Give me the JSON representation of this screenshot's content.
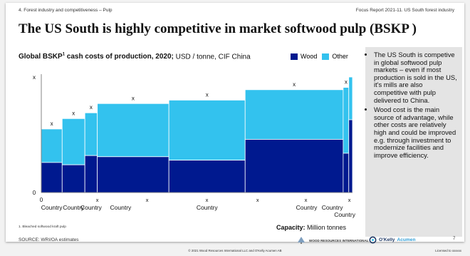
{
  "header": {
    "left": "4. Forest industry and competitiveness – Pulp",
    "right": "Focus Report 2021-11. US South forest industry"
  },
  "title": "The US South is highly competitive in market softwood pulp (BSKP )",
  "chart_data": {
    "type": "bar",
    "title_bold": "Global BSKP",
    "title_sup": "1",
    "title_bold_tail": " cash costs of production, 2020;",
    "title_rest": " USD / tonne, CIF China",
    "legend": [
      {
        "name": "Wood",
        "color": "#00198f"
      },
      {
        "name": "Other",
        "color": "#33c2ee"
      }
    ],
    "ylabel": "x",
    "y_zero_label": "0",
    "x_zero_label": "0",
    "xlabel_bold": "Capacity:",
    "xlabel_rest": " Million tonnes",
    "ylim": [
      0,
      100
    ],
    "x_range": [
      0,
      100
    ],
    "bar_value_label": "x",
    "bars": [
      {
        "x0": 0.0,
        "x1": 6.7,
        "wood": 26,
        "other": 29,
        "label": "Country"
      },
      {
        "x0": 6.7,
        "x1": 14.0,
        "wood": 24,
        "other": 40,
        "label": "Country"
      },
      {
        "x0": 14.0,
        "x1": 18.0,
        "wood": 32,
        "other": 37,
        "label": "Country"
      },
      {
        "x0": 18.0,
        "x1": 41.0,
        "wood": 31,
        "other": 46,
        "label": "Country"
      },
      {
        "x0": 41.0,
        "x1": 65.5,
        "wood": 28,
        "other": 52,
        "label": "Country"
      },
      {
        "x0": 65.5,
        "x1": 97.0,
        "wood": 46,
        "other": 43,
        "label": "Country"
      },
      {
        "x0": 97.0,
        "x1": 98.8,
        "wood": 34,
        "other": 57,
        "label": "Country"
      },
      {
        "x0": 98.8,
        "x1": 100.0,
        "wood": 63,
        "other": 37,
        "label": "Country"
      }
    ],
    "x_ticks": [
      {
        "x": 18.0,
        "label": "x"
      },
      {
        "x": 34.0,
        "label": "x"
      },
      {
        "x": 53.2,
        "label": "x"
      },
      {
        "x": 69.5,
        "label": "x"
      },
      {
        "x": 85.0,
        "label": "x"
      },
      {
        "x": 99.0,
        "label": "x"
      }
    ]
  },
  "sidebar": {
    "bullets": [
      "The US South is competive in global softwood pulp markets – even if most production is sold in the US, it's mills are also competitive with pulp delivered to China.",
      "Wood cost is the main source of advantage, while other costs are relatively high and could be improved e.g. through investment to modernize facilities and improve efficiency."
    ]
  },
  "footnote": "1. Bleached softwood kraft pulp",
  "source": "SOURCE:  WRI/OA estimates",
  "logos": {
    "wri": "WOOD RESOURCES INTERNATIONAL",
    "okelly_1": "O'Kelly",
    "okelly_2": "Acumen"
  },
  "page_number": "7",
  "copyright": "© 2021 Wood Resources International LLC and O'Kelly Acumen AB",
  "license": "Licensed to xxxxxx",
  "colors": {
    "wood": "#00198f",
    "other": "#33c2ee",
    "okelly": "#1f3864"
  }
}
